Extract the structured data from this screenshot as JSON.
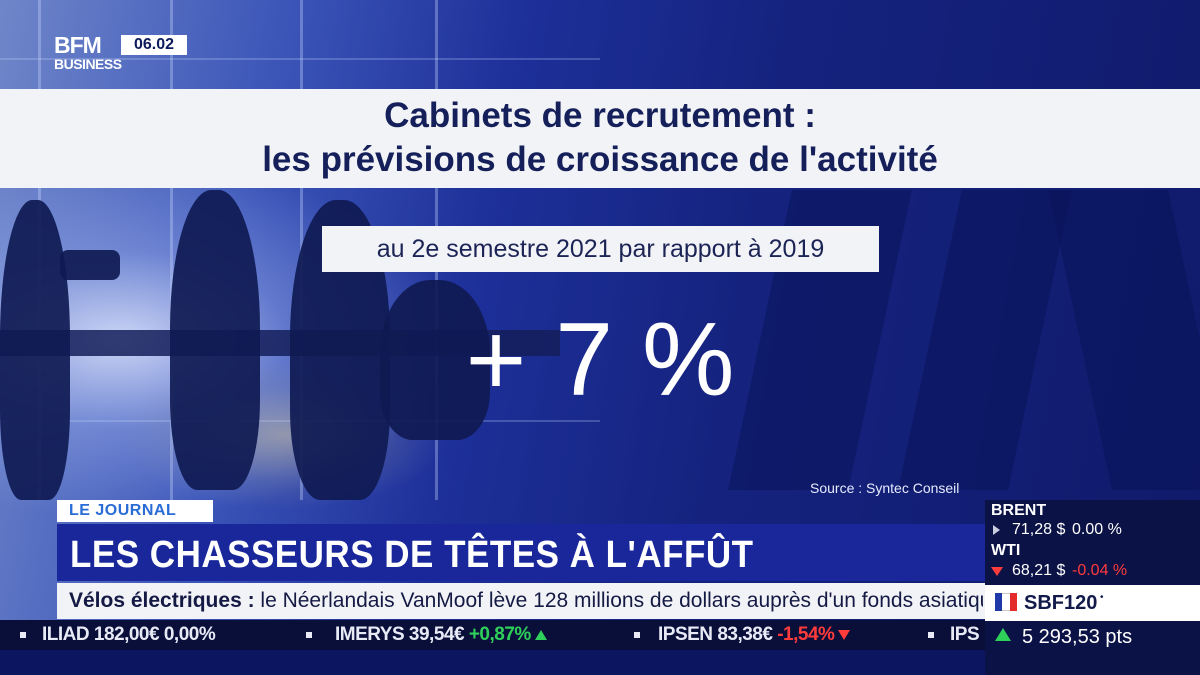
{
  "logo": {
    "brand_top": "BFM",
    "brand_bottom": "BUSINESS"
  },
  "clock": "06.02",
  "infographic": {
    "title_line1": "Cabinets de recrutement :",
    "title_line2": "les prévisions de croissance de l'activité",
    "subtitle": "au 2e semestre 2021 par rapport à 2019",
    "value": "+ 7 %",
    "source": "Source : Syntec Conseil"
  },
  "lower_third": {
    "tag": "LE JOURNAL",
    "headline": "LES CHASSEURS DE TÊTES À L'AFFÛT",
    "news_topic": "Vélos électriques :",
    "news_text": " le Néerlandais VanMoof lève 128 millions de dollars auprès d'un fonds asiatique."
  },
  "ticker": {
    "items": [
      {
        "name": "ILIAD",
        "price": "182,00€",
        "change": "0,00%",
        "trend": "neutral"
      },
      {
        "name": "IMERYS",
        "price": "39,54€",
        "change": "+0,87%",
        "trend": "up"
      },
      {
        "name": "IPSEN",
        "price": "83,38€",
        "change": "-1,54%",
        "trend": "down"
      },
      {
        "name": "IPS",
        "price": "",
        "change": "",
        "trend": "up"
      }
    ]
  },
  "markets": {
    "brent": {
      "name": "BRENT",
      "price": "71,28 $",
      "change": "0.00 %"
    },
    "wti": {
      "name": "WTI",
      "price": "68,21 $",
      "change": "-0.04 %"
    },
    "index": {
      "name": "SBF120",
      "dot": "•",
      "value": "5 293,53 pts"
    }
  },
  "colors": {
    "tag_text": "#2a6cd6",
    "headline_band": "#19279a",
    "up": "#2fd05a",
    "down": "#ff3b3b",
    "flag_blue": "#1f3aa8",
    "flag_white": "#ffffff",
    "flag_red": "#e32b2b"
  }
}
